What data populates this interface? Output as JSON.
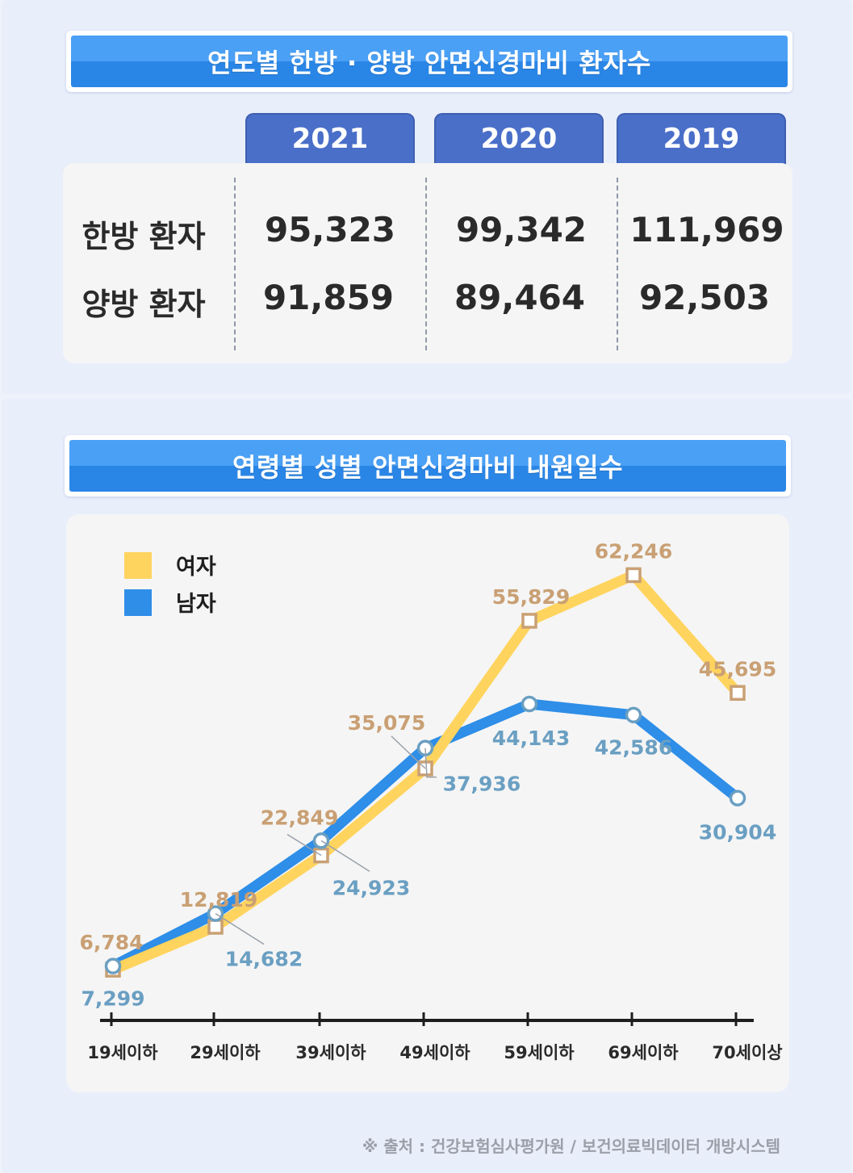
{
  "table": {
    "title": "연도별 한방 · 양방 안면신경마비 환자수",
    "years": [
      "2021",
      "2020",
      "2019"
    ],
    "rows": [
      {
        "label": "한방 환자",
        "values": [
          "95,323",
          "99,342",
          "111,969"
        ]
      },
      {
        "label": "양방 환자",
        "values": [
          "91,859",
          "89,464",
          "92,503"
        ]
      }
    ]
  },
  "chart_title": "연령별 성별 안면신경마비 내원일수",
  "source": "※ 출처 : 건강보험심사평가원 / 보건의료빅데이터 개방시스템",
  "chart_data": {
    "type": "line",
    "title": "연령별 성별 안면신경마비 내원일수",
    "categories": [
      "19세이하",
      "29세이하",
      "39세이하",
      "49세이하",
      "59세이하",
      "69세이하",
      "70세이상"
    ],
    "series": [
      {
        "name": "여자",
        "color": "#ffd45e",
        "marker": "square",
        "label_color": "#c9a074",
        "values": [
          6784,
          12819,
          22849,
          35075,
          55829,
          62246,
          45695
        ],
        "labels": [
          "6,784",
          "12,819",
          "22,849",
          "35,075",
          "55,829",
          "62,246",
          "45,695"
        ]
      },
      {
        "name": "남자",
        "color": "#2e8ee8",
        "marker": "circle",
        "label_color": "#6a9fc2",
        "values": [
          7299,
          14682,
          24923,
          37936,
          44143,
          42586,
          30904
        ],
        "labels": [
          "7,299",
          "14,682",
          "24,923",
          "37,936",
          "44,143",
          "42,586",
          "30,904"
        ]
      }
    ],
    "legend_position": "top-left",
    "grid": false
  },
  "colors": {
    "panel": "#e9eefb",
    "tab": "#4a6fc9",
    "title_top": "#4aa0f5",
    "title_bottom": "#2a86e6"
  }
}
